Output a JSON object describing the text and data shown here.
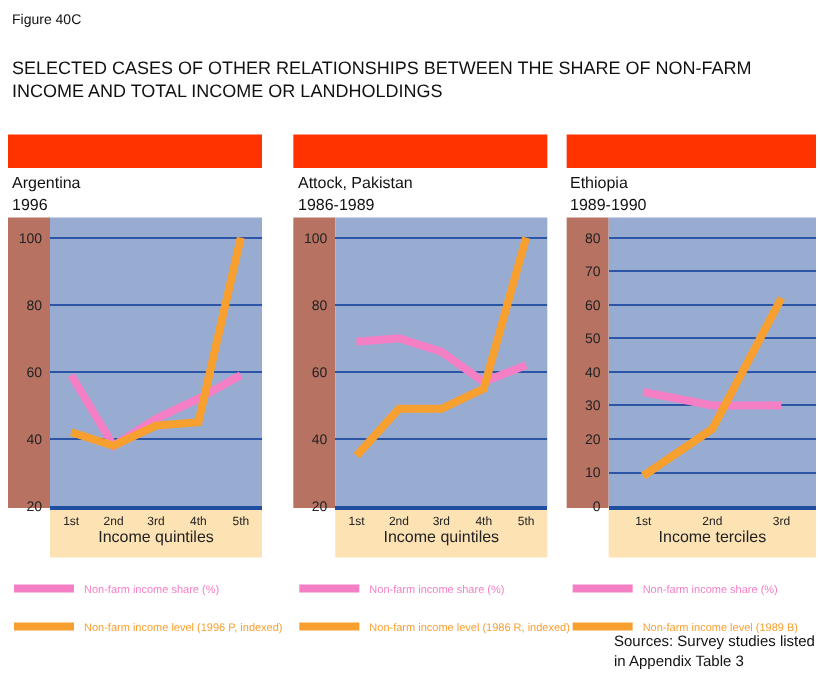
{
  "chart_data": [
    {
      "type": "line",
      "title": "Argentina",
      "subtitle": "1996",
      "xlabel": "Income quintiles",
      "categories": [
        "1st",
        "2nd",
        "3rd",
        "4th",
        "5th"
      ],
      "series": [
        {
          "name": "Non-farm income share (%)",
          "color": "#f47fc4",
          "values": [
            59,
            38,
            46,
            52,
            59
          ]
        },
        {
          "name": "Non-farm income level (1996 P, indexed)",
          "color": "#f7a030",
          "values": [
            42,
            38,
            44,
            45,
            100
          ]
        }
      ],
      "ylim": [
        20,
        106
      ],
      "yticks": [
        20,
        40,
        60,
        80,
        100
      ],
      "grid": "y",
      "legend": "bottom",
      "annotations": [
        "Figure 40C",
        "SELECTED CASES OF OTHER RELATIONSHIPS BETWEEN THE SHARE OF NON-FARM INCOME AND TOTAL INCOME OR LANDHOLDINGS"
      ]
    },
    {
      "type": "line",
      "title": "Attock, Pakistan",
      "subtitle": "1986-1989",
      "xlabel": "Income quintiles",
      "categories": [
        "1st",
        "2nd",
        "3rd",
        "4th",
        "5th"
      ],
      "series": [
        {
          "name": "Non-farm income share (%)",
          "color": "#f47fc4",
          "values": [
            69,
            70,
            66,
            57,
            62
          ]
        },
        {
          "name": "Non-farm income level (1986 R, indexed)",
          "color": "#f7a030",
          "values": [
            35,
            49,
            49,
            55,
            100
          ]
        }
      ],
      "ylim": [
        20,
        106
      ],
      "yticks": [
        20,
        40,
        60,
        80,
        100
      ],
      "grid": "y",
      "legend": "bottom"
    },
    {
      "type": "line",
      "title": "Ethiopia",
      "subtitle": "1989-1990",
      "xlabel": "Income terciles",
      "categories": [
        "1st",
        "2nd",
        "3rd"
      ],
      "series": [
        {
          "name": "Non-farm income share (%)",
          "color": "#f47fc4",
          "values": [
            34,
            30,
            30
          ]
        },
        {
          "name": "Non-farm income level (1989 B)",
          "color": "#f7a030",
          "values": [
            9,
            23,
            62
          ]
        }
      ],
      "ylim": [
        0,
        86
      ],
      "yticks": [
        0,
        10,
        20,
        30,
        40,
        50,
        60,
        70,
        80
      ],
      "grid": "y",
      "legend": "bottom",
      "annotations": [
        "Sources: Survey studies listed in Appendix Table 3"
      ]
    }
  ]
}
